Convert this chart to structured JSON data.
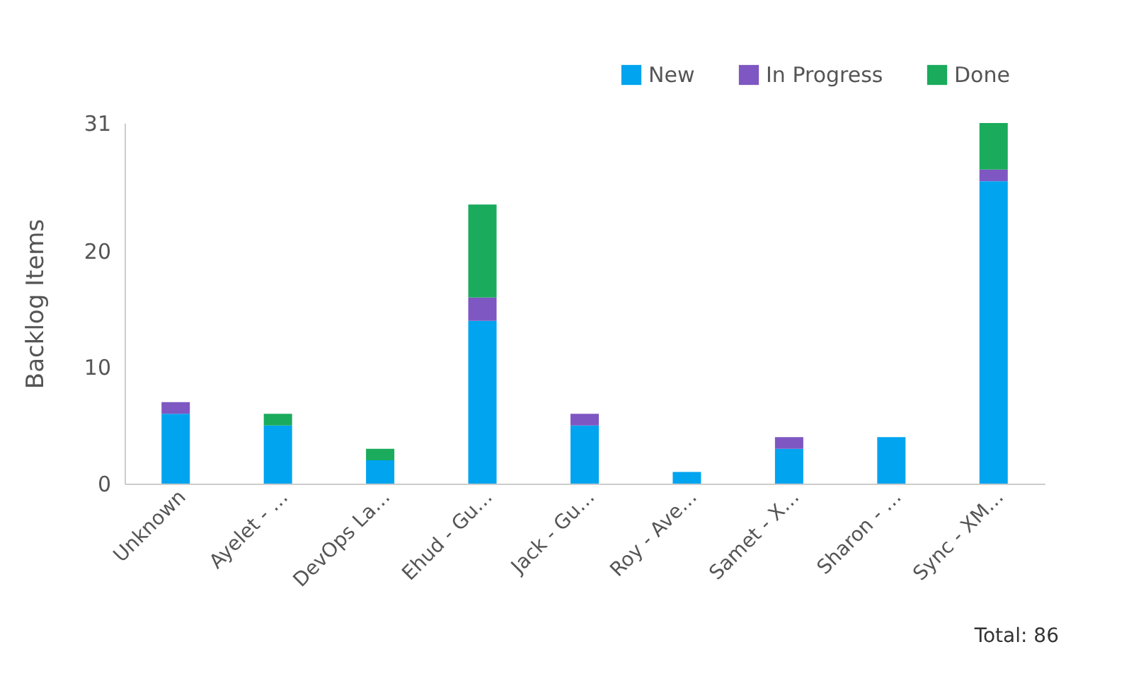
{
  "chart_data": {
    "type": "bar",
    "stacked": true,
    "ylabel": "Backlog Items",
    "categories": [
      "Unknown",
      "Ayelet - …",
      "DevOps La…",
      "Ehud - Gu…",
      "Jack - Gu…",
      "Roy - Ave…",
      "Samet - X…",
      "Sharon - …",
      "Sync - XM…"
    ],
    "series": [
      {
        "name": "New",
        "color": "#00a4ef",
        "values": [
          6,
          5,
          2,
          14,
          5,
          1,
          3,
          4,
          26
        ]
      },
      {
        "name": "In Progress",
        "color": "#7e57c2",
        "values": [
          1,
          0,
          0,
          2,
          1,
          0,
          1,
          0,
          1
        ]
      },
      {
        "name": "Done",
        "color": "#1aab5c",
        "values": [
          0,
          1,
          1,
          8,
          0,
          0,
          0,
          0,
          4
        ]
      }
    ],
    "ylim": [
      0,
      31
    ],
    "yticks": [
      0,
      10,
      20,
      31
    ],
    "grid": false,
    "legend": "top right",
    "annotations": [
      "Total: 86"
    ]
  }
}
